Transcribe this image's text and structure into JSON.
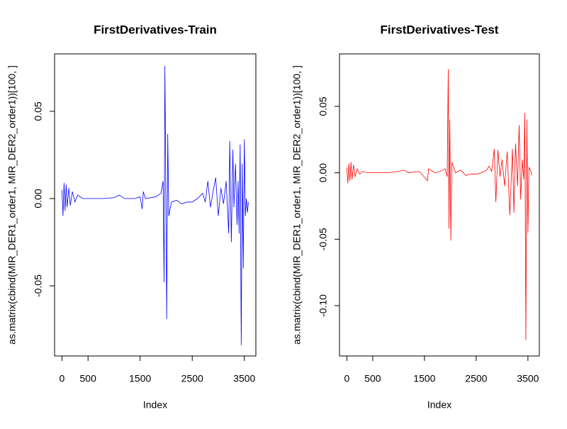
{
  "chart_data": [
    {
      "type": "line",
      "title": "FirstDerivatives-Train",
      "x_label": "Index",
      "y_label": "as.matrix(cbind(MIR_DER1_order1, MIR_DER2_order1))[100, ]",
      "color": "#0000ff",
      "x": [
        0,
        20,
        40,
        60,
        80,
        100,
        130,
        160,
        200,
        250,
        300,
        400,
        600,
        800,
        1000,
        1100,
        1200,
        1400,
        1500,
        1540,
        1560,
        1600,
        1800,
        1900,
        1940,
        1960,
        1975,
        1990,
        2010,
        2030,
        2050,
        2100,
        2200,
        2300,
        2400,
        2500,
        2600,
        2700,
        2750,
        2800,
        2850,
        2900,
        2950,
        3000,
        3050,
        3100,
        3150,
        3200,
        3220,
        3250,
        3280,
        3300,
        3330,
        3360,
        3380,
        3400,
        3420,
        3440,
        3460,
        3480,
        3500,
        3520,
        3540,
        3560,
        3578
      ],
      "values": [
        0.005,
        -0.01,
        0.009,
        -0.007,
        0.008,
        -0.005,
        0.006,
        -0.004,
        0.004,
        -0.002,
        0.002,
        0,
        0,
        0,
        0.0005,
        0.002,
        0,
        0,
        0.001,
        -0.006,
        0.004,
        0,
        0.001,
        0.003,
        0.01,
        -0.048,
        0.076,
        0.02,
        -0.069,
        0.037,
        -0.01,
        -0.002,
        -0.001,
        -0.003,
        -0.002,
        -0.002,
        0,
        0.003,
        -0.002,
        0.01,
        -0.005,
        0.004,
        0.012,
        -0.01,
        0.006,
        -0.003,
        0.01,
        -0.02,
        0.033,
        -0.025,
        0.028,
        -0.005,
        0.02,
        -0.015,
        0.01,
        -0.02,
        0.031,
        -0.084,
        0.02,
        -0.04,
        0.034,
        -0.01,
        0,
        -0.008,
        -0.002
      ],
      "xlim": [
        -142,
        3721
      ],
      "xticks": [
        0,
        500,
        1500,
        2500,
        3500
      ],
      "ylim": [
        -0.0902,
        0.0829
      ],
      "yticks": [
        -0.05,
        {
          "value": 0,
          "label": "0.00"
        },
        0.05
      ]
    },
    {
      "type": "line",
      "title": "FirstDerivatives-Test",
      "x_label": "Index",
      "y_label": "as.matrix(cbind(MIR_DER1_order1, MIR_DER2_order1))[100, ]",
      "color": "#ff0000",
      "x": [
        0,
        20,
        40,
        60,
        80,
        100,
        130,
        160,
        200,
        250,
        300,
        400,
        600,
        800,
        1000,
        1100,
        1200,
        1400,
        1560,
        1580,
        1700,
        1800,
        1900,
        1940,
        1960,
        1975,
        1990,
        2010,
        2030,
        2100,
        2200,
        2300,
        2400,
        2500,
        2600,
        2700,
        2750,
        2800,
        2850,
        2880,
        2920,
        2960,
        3000,
        3050,
        3100,
        3150,
        3200,
        3230,
        3260,
        3300,
        3330,
        3360,
        3390,
        3420,
        3440,
        3460,
        3480,
        3500,
        3520,
        3550,
        3578
      ],
      "values": [
        0.004,
        -0.008,
        0.007,
        -0.006,
        0.008,
        -0.005,
        0.006,
        -0.003,
        0.003,
        -0.001,
        0.001,
        0,
        0,
        0,
        0.001,
        0.002,
        0,
        0.001,
        -0.006,
        0.003,
        0,
        0.001,
        0.003,
        -0.003,
        0.078,
        -0.042,
        0.04,
        -0.051,
        0.008,
        0,
        0.002,
        -0.002,
        -0.001,
        -0.001,
        0,
        0.002,
        0.005,
        0.001,
        0.018,
        -0.022,
        0.017,
        -0.003,
        0.01,
        -0.01,
        0.016,
        -0.032,
        0.018,
        -0.03,
        0.022,
        -0.01,
        0.036,
        -0.02,
        0.01,
        -0.005,
        0.045,
        -0.126,
        0.04,
        -0.045,
        0.004,
        0.002,
        -0.002
      ],
      "xlim": [
        -142,
        3721
      ],
      "xticks": [
        0,
        500,
        1500,
        2500,
        3500
      ],
      "ylim": [
        -0.1379,
        0.0895
      ],
      "yticks": [
        {
          "value": -0.1,
          "label": "-0.10"
        },
        -0.05,
        {
          "value": 0,
          "label": "0.00"
        },
        0.05
      ]
    }
  ]
}
